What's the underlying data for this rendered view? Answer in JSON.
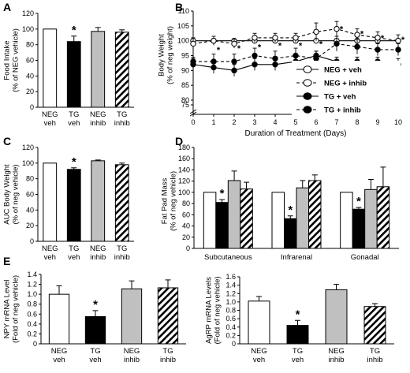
{
  "chart_data": [
    {
      "panel": "A",
      "type": "bar",
      "ylabel": "Food Intake\n(% of NEG vehicle)",
      "ylim": [
        0,
        120
      ],
      "yticks": [
        0,
        20,
        40,
        60,
        80,
        100,
        120
      ],
      "categories": [
        "NEG\nveh",
        "TG\nveh",
        "NEG\ninhib",
        "TG\ninhib"
      ],
      "fills": [
        "white",
        "black",
        "gray",
        "hatch"
      ],
      "values": [
        100,
        84,
        97,
        96
      ],
      "errors": [
        0,
        7,
        5,
        3
      ],
      "significant": [
        false,
        true,
        false,
        false
      ],
      "star": "*"
    },
    {
      "panel": "B",
      "type": "line",
      "ylabel": "Body Weight\n(% of neg weight)",
      "xlabel": "Duration of Treatment (Days)",
      "xlim": [
        0,
        10
      ],
      "xticks": [
        0,
        1,
        2,
        3,
        4,
        5,
        6,
        7,
        8,
        9,
        10
      ],
      "yticks": [
        75,
        80,
        85,
        90,
        95,
        100,
        105,
        110
      ],
      "x": [
        0,
        1,
        2,
        3,
        4,
        5,
        6,
        7,
        8,
        9,
        10
      ],
      "series": [
        {
          "name": "NEG + veh",
          "marker": "open",
          "dash": false,
          "values": [
            100,
            100,
            100,
            100,
            100,
            100,
            100,
            100,
            100,
            100,
            100
          ],
          "errors": [
            0.5,
            0.5,
            0.5,
            0.5,
            0.5,
            0.5,
            0.5,
            0.5,
            0.5,
            0.5,
            0.5
          ]
        },
        {
          "name": "NEG + inhib",
          "marker": "open",
          "dash": true,
          "values": [
            99,
            100,
            99,
            101,
            101,
            101,
            103,
            104,
            102,
            101,
            100
          ],
          "errors": [
            2,
            1.5,
            1.5,
            1.5,
            1.5,
            1.5,
            3,
            2.5,
            2,
            2,
            2
          ]
        },
        {
          "name": "TG + veh",
          "marker": "filled",
          "dash": false,
          "values": [
            92,
            91,
            90,
            92,
            92,
            93,
            95,
            93,
            93,
            93,
            92
          ],
          "errors": [
            2,
            2,
            2,
            2,
            2,
            2,
            1.5,
            1.5,
            1.5,
            1.5,
            2
          ]
        },
        {
          "name": "TG + inhib",
          "marker": "filled",
          "dash": true,
          "values": [
            93,
            93,
            93,
            95,
            94,
            95,
            94,
            99,
            98,
            97,
            97
          ],
          "errors": [
            1.5,
            2.5,
            2.5,
            2.5,
            2.5,
            2.5,
            2.5,
            2.5,
            2.5,
            2,
            2
          ]
        }
      ],
      "star_days": [
        1,
        2,
        3,
        4,
        5,
        6,
        7,
        8,
        9,
        10
      ],
      "star": "*"
    },
    {
      "panel": "C",
      "type": "bar",
      "ylabel": "AUC Body Weight\n(% of neg vehicle)",
      "ylim": [
        0,
        120
      ],
      "yticks": [
        0,
        20,
        40,
        60,
        80,
        100,
        120
      ],
      "categories": [
        "NEG\nveh",
        "TG\nveh",
        "NEG\ninhib",
        "TG\ninhib"
      ],
      "fills": [
        "white",
        "black",
        "gray",
        "hatch"
      ],
      "values": [
        100,
        92,
        103,
        98
      ],
      "errors": [
        0,
        2,
        1,
        2
      ],
      "significant": [
        false,
        true,
        false,
        false
      ],
      "star": "*"
    },
    {
      "panel": "D",
      "type": "bar",
      "ylabel": "Fat Pad Mass\n(% of neg vehicle)",
      "ylim": [
        0,
        180
      ],
      "yticks": [
        0,
        20,
        40,
        60,
        80,
        100,
        120,
        140,
        160,
        180
      ],
      "categories": [
        "Subcutaneous",
        "Infrarenal",
        "Gonadal"
      ],
      "series": [
        {
          "fill": "white",
          "values": [
            100,
            100,
            100
          ],
          "errors": [
            0,
            0,
            0
          ]
        },
        {
          "fill": "black",
          "values": [
            82,
            53,
            70
          ],
          "errors": [
            5,
            5,
            3
          ]
        },
        {
          "fill": "gray",
          "values": [
            121,
            108,
            105
          ],
          "errors": [
            17,
            13,
            18
          ]
        },
        {
          "fill": "hatch",
          "values": [
            106,
            121,
            110
          ],
          "errors": [
            12,
            10,
            35
          ]
        }
      ],
      "significant_series": 1,
      "star": "*"
    },
    {
      "panel": "E",
      "type": "bar",
      "ylabel": "NPY mRNA Level\n(Fold of neg vehicle)",
      "ylim": [
        0,
        1.4
      ],
      "yticks": [
        "0",
        "0.2",
        "0.4",
        "0.6",
        "0.8",
        "1.0",
        "1.2",
        "1.4"
      ],
      "categories": [
        "NEG\nveh",
        "TG\nveh",
        "NEG\ninhib",
        "TG\ninhib"
      ],
      "fills": [
        "white",
        "black",
        "gray",
        "hatch"
      ],
      "values": [
        1.0,
        0.55,
        1.11,
        1.13
      ],
      "errors": [
        0.17,
        0.12,
        0.16,
        0.16
      ],
      "significant": [
        false,
        true,
        false,
        false
      ],
      "star": "*"
    },
    {
      "panel": "",
      "type": "bar",
      "ylabel": "AgRP mRNA Levels\n(Fold of neg vehicle)",
      "ylim": [
        0,
        1.6
      ],
      "yticks": [
        "0",
        "0.2",
        "0.4",
        "0.6",
        "0.8",
        "1.0",
        "1.2",
        "1.4",
        "1.6"
      ],
      "categories": [
        "NEG\nveh",
        "TG\nveh",
        "NEG\ninhib",
        "TG\ninhib"
      ],
      "fills": [
        "white",
        "black",
        "gray",
        "hatch"
      ],
      "values": [
        1.02,
        0.44,
        1.29,
        0.89
      ],
      "errors": [
        0.11,
        0.12,
        0.13,
        0.07
      ],
      "significant": [
        false,
        true,
        false,
        false
      ],
      "star": "*"
    }
  ]
}
